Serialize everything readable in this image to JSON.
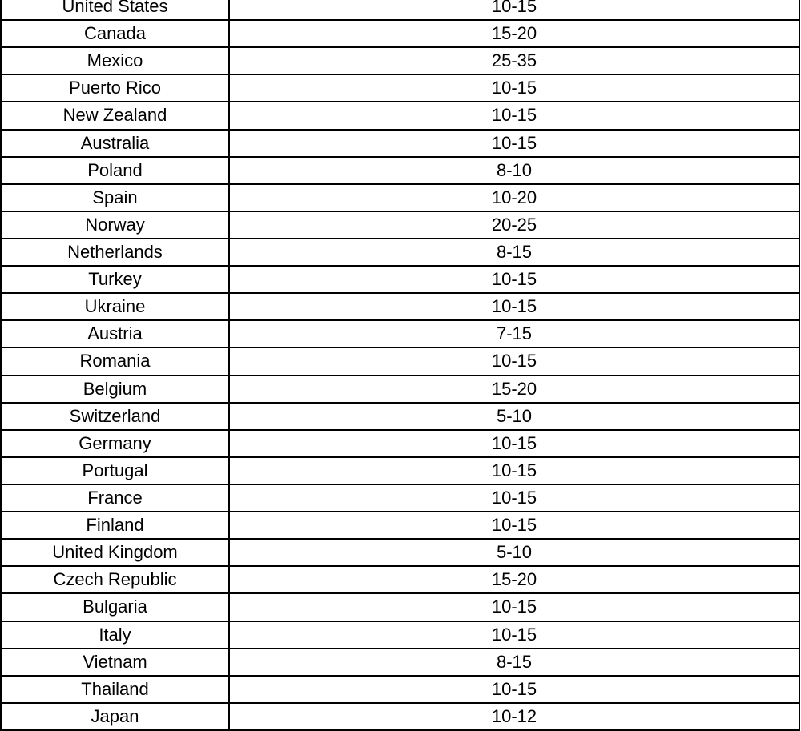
{
  "table": {
    "rows": [
      [
        "United States",
        "10-15"
      ],
      [
        "Canada",
        "15-20"
      ],
      [
        "Mexico",
        "25-35"
      ],
      [
        "Puerto Rico",
        "10-15"
      ],
      [
        "New Zealand",
        "10-15"
      ],
      [
        "Australia",
        "10-15"
      ],
      [
        "Poland",
        "8-10"
      ],
      [
        "Spain",
        "10-20"
      ],
      [
        "Norway",
        "20-25"
      ],
      [
        "Netherlands",
        "8-15"
      ],
      [
        "Turkey",
        "10-15"
      ],
      [
        "Ukraine",
        "10-15"
      ],
      [
        "Austria",
        "7-15"
      ],
      [
        "Romania",
        "10-15"
      ],
      [
        "Belgium",
        "15-20"
      ],
      [
        "Switzerland",
        "5-10"
      ],
      [
        "Germany",
        "10-15"
      ],
      [
        "Portugal",
        "10-15"
      ],
      [
        "France",
        "10-15"
      ],
      [
        "Finland",
        "10-15"
      ],
      [
        "United Kingdom",
        "5-10"
      ],
      [
        "Czech Republic",
        "15-20"
      ],
      [
        "Bulgaria",
        "10-15"
      ],
      [
        "Italy",
        "10-15"
      ],
      [
        "Vietnam",
        "8-15"
      ],
      [
        "Thailand",
        "10-15"
      ],
      [
        "Japan",
        "10-12"
      ]
    ]
  }
}
